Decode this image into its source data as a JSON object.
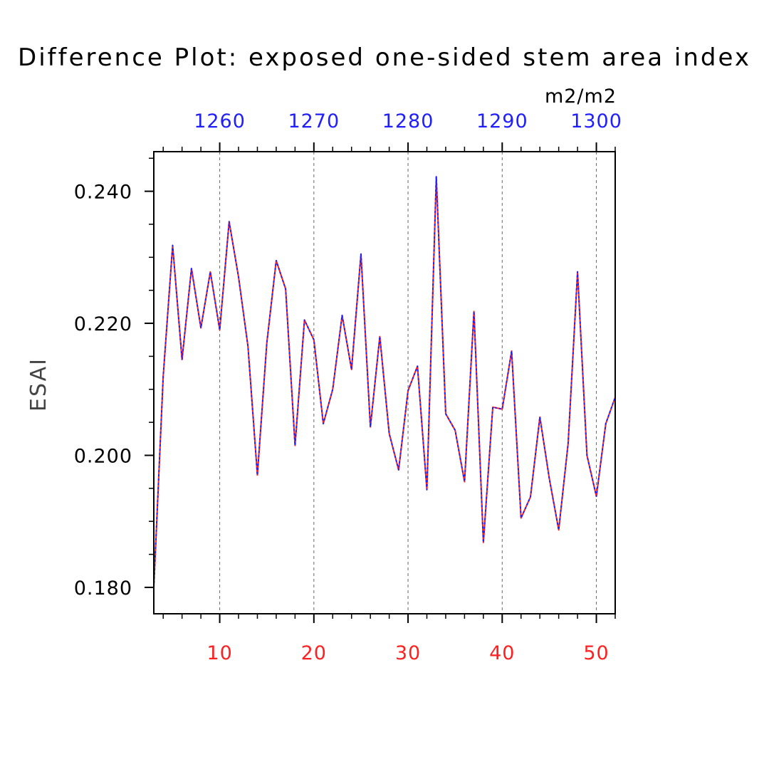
{
  "chart_data": {
    "type": "line",
    "title": "Difference Plot: exposed one-sided stem area index",
    "units": "m2/m2",
    "ylabel": "ESAI",
    "xlabel": "",
    "x_bottom": {
      "range": [
        3,
        52
      ],
      "ticks": [
        10,
        20,
        30,
        40,
        50
      ],
      "tick_labels": [
        "10",
        "20",
        "30",
        "40",
        "50"
      ],
      "color": "#ff2020"
    },
    "x_top": {
      "range": [
        1253,
        1302
      ],
      "ticks": [
        1260,
        1270,
        1280,
        1290,
        1300
      ],
      "tick_labels": [
        "1260",
        "1270",
        "1280",
        "1290",
        "1300"
      ],
      "color": "#2020ff"
    },
    "y": {
      "range": [
        0.176,
        0.246
      ],
      "ticks": [
        0.18,
        0.2,
        0.22,
        0.24
      ],
      "tick_labels": [
        "0.180",
        "0.200",
        "0.220",
        "0.240"
      ]
    },
    "grid": "vertical dashed at major x ticks",
    "series": [
      {
        "color": "#ff2020",
        "style": "solid",
        "x": [
          3,
          4,
          5,
          6,
          7,
          8,
          9,
          10,
          11,
          12,
          13,
          14,
          15,
          16,
          17,
          18,
          19,
          20,
          21,
          22,
          23,
          24,
          25,
          26,
          27,
          28,
          29,
          30,
          31,
          32,
          33,
          34,
          35,
          36,
          37,
          38,
          39,
          40,
          41,
          42,
          43,
          44,
          45,
          46,
          47,
          48,
          49,
          50,
          51,
          52
        ],
        "values": [
          0.18,
          0.212,
          0.2318,
          0.2145,
          0.2283,
          0.2193,
          0.2278,
          0.219,
          0.2354,
          0.227,
          0.2165,
          0.197,
          0.217,
          0.2295,
          0.2252,
          0.2015,
          0.2205,
          0.2175,
          0.2048,
          0.21,
          0.2212,
          0.213,
          0.2305,
          0.2043,
          0.218,
          0.2033,
          0.1978,
          0.2098,
          0.2135,
          0.1948,
          0.2422,
          0.2063,
          0.2038,
          0.196,
          0.2218,
          0.1868,
          0.2073,
          0.207,
          0.2158,
          0.1905,
          0.1937,
          0.2058,
          0.1965,
          0.1887,
          0.2018,
          0.2278,
          0.2,
          0.1938,
          0.2048,
          0.2088
        ]
      },
      {
        "color": "#2020ff",
        "style": "dashed",
        "x": [
          3,
          4,
          5,
          6,
          7,
          8,
          9,
          10,
          11,
          12,
          13,
          14,
          15,
          16,
          17,
          18,
          19,
          20,
          21,
          22,
          23,
          24,
          25,
          26,
          27,
          28,
          29,
          30,
          31,
          32,
          33,
          34,
          35,
          36,
          37,
          38,
          39,
          40,
          41,
          42,
          43,
          44,
          45,
          46,
          47,
          48,
          49,
          50,
          51,
          52
        ],
        "values": [
          0.18,
          0.212,
          0.2318,
          0.2145,
          0.2283,
          0.2193,
          0.2278,
          0.219,
          0.2354,
          0.227,
          0.2165,
          0.197,
          0.217,
          0.2295,
          0.2252,
          0.2015,
          0.2205,
          0.2175,
          0.2048,
          0.21,
          0.2212,
          0.213,
          0.2305,
          0.2043,
          0.218,
          0.2033,
          0.1978,
          0.2098,
          0.2135,
          0.1948,
          0.2422,
          0.2063,
          0.2038,
          0.196,
          0.2218,
          0.1868,
          0.2073,
          0.207,
          0.2158,
          0.1905,
          0.1937,
          0.2058,
          0.1965,
          0.1887,
          0.2018,
          0.2278,
          0.2,
          0.1938,
          0.2048,
          0.2088
        ]
      }
    ]
  }
}
